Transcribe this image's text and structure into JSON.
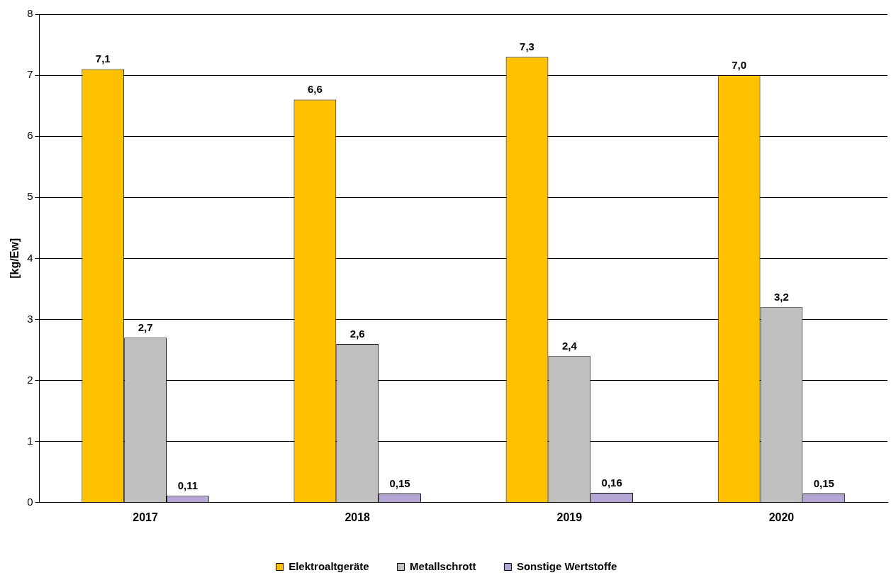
{
  "chart_data": {
    "type": "bar",
    "ylabel": "[kg/Ew]",
    "categories": [
      "2017",
      "2018",
      "2019",
      "2020"
    ],
    "series": [
      {
        "name": "Elektroaltgeräte",
        "color": "#ffc000",
        "values": [
          7.1,
          6.6,
          7.3,
          7.0
        ],
        "value_labels": [
          "7,1",
          "6,6",
          "7,3",
          "7,0"
        ]
      },
      {
        "name": "Metallschrott",
        "color": "#c0c0c0",
        "values": [
          2.7,
          2.6,
          2.4,
          3.2
        ],
        "value_labels": [
          "2,7",
          "2,6",
          "2,4",
          "3,2"
        ]
      },
      {
        "name": "Sonstige Wertstoffe",
        "color": "#b4a7d6",
        "values": [
          0.11,
          0.15,
          0.16,
          0.15
        ],
        "value_labels": [
          "0,11",
          "0,15",
          "0,16",
          "0,15"
        ]
      }
    ],
    "ylim": [
      0,
      8
    ],
    "yticks": [
      0,
      1,
      2,
      3,
      4,
      5,
      6,
      7,
      8
    ],
    "grid": "y",
    "legend": "bottom"
  }
}
